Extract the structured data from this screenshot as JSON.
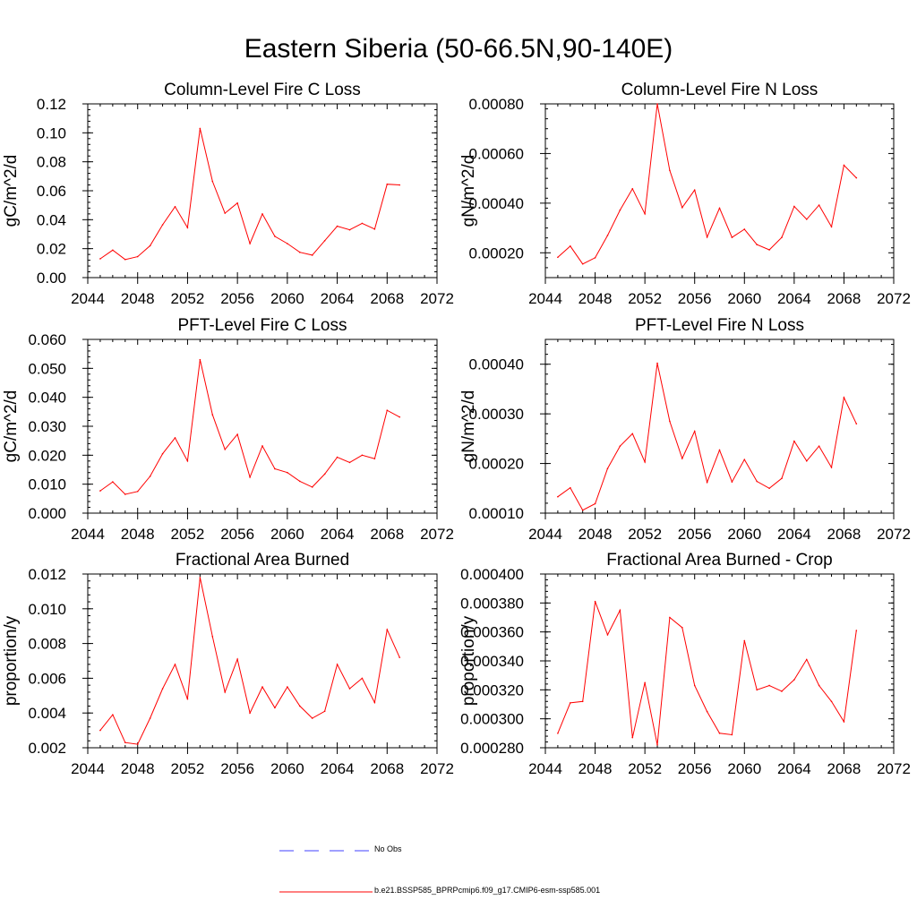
{
  "page_title": "Eastern Siberia (50-66.5N,90-140E)",
  "colors": {
    "model": "#ff0000",
    "obs": "#4040ff",
    "axis": "#000000"
  },
  "chart_data": [
    {
      "type": "line",
      "title": "Column-Level Fire C Loss",
      "ylabel": "gC/m^2/d",
      "xlim": [
        2044,
        2072
      ],
      "ylim": [
        0.0,
        0.12
      ],
      "xticks": [
        "2044",
        "2048",
        "2052",
        "2056",
        "2060",
        "2064",
        "2068",
        "2072"
      ],
      "yticks": [
        "0.00",
        "0.02",
        "0.04",
        "0.06",
        "0.08",
        "0.10",
        "0.12"
      ],
      "series": [
        {
          "name": "b.e21.BSSP585_BPRPcmip6.f09_g17.CMIP6-esm-ssp585.001",
          "x": [
            2045,
            2046,
            2047,
            2048,
            2049,
            2050,
            2051,
            2052,
            2053,
            2054,
            2055,
            2056,
            2057,
            2058,
            2059,
            2060,
            2061,
            2062,
            2063,
            2064,
            2065,
            2066,
            2067,
            2068,
            2069
          ],
          "values": [
            0.013,
            0.019,
            0.0125,
            0.0145,
            0.022,
            0.0365,
            0.049,
            0.0345,
            0.103,
            0.0665,
            0.0445,
            0.0515,
            0.0235,
            0.044,
            0.0285,
            0.0235,
            0.0175,
            0.0155,
            0.0255,
            0.0355,
            0.033,
            0.0375,
            0.0335,
            0.0645,
            0.064
          ]
        }
      ]
    },
    {
      "type": "line",
      "title": "Column-Level Fire N Loss",
      "ylabel": "gN/m^2/d",
      "xlim": [
        2044,
        2072
      ],
      "ylim": [
        0.0001,
        0.0008
      ],
      "xticks": [
        "2044",
        "2048",
        "2052",
        "2056",
        "2060",
        "2064",
        "2068",
        "2072"
      ],
      "yticks": [
        "0.00020",
        "0.00040",
        "0.00060",
        "0.00080"
      ],
      "ytick_values": [
        0.0002,
        0.0004,
        0.0006,
        0.0008
      ],
      "series": [
        {
          "name": "b.e21.BSSP585_BPRPcmip6.f09_g17.CMIP6-esm-ssp585.001",
          "x": [
            2045,
            2046,
            2047,
            2048,
            2049,
            2050,
            2051,
            2052,
            2053,
            2054,
            2055,
            2056,
            2057,
            2058,
            2059,
            2060,
            2061,
            2062,
            2063,
            2064,
            2065,
            2066,
            2067,
            2068,
            2069
          ],
          "values": [
            0.000182,
            0.000227,
            0.000155,
            0.00018,
            0.00027,
            0.000372,
            0.000458,
            0.000357,
            0.0008,
            0.000532,
            0.000382,
            0.000453,
            0.000263,
            0.00038,
            0.000262,
            0.000295,
            0.000233,
            0.000212,
            0.000262,
            0.000387,
            0.000335,
            0.000392,
            0.000305,
            0.000553,
            0.000502
          ]
        }
      ]
    },
    {
      "type": "line",
      "title": "PFT-Level Fire C Loss",
      "ylabel": "gC/m^2/d",
      "xlim": [
        2044,
        2072
      ],
      "ylim": [
        0.0,
        0.06
      ],
      "xticks": [
        "2044",
        "2048",
        "2052",
        "2056",
        "2060",
        "2064",
        "2068",
        "2072"
      ],
      "yticks": [
        "0.000",
        "0.010",
        "0.020",
        "0.030",
        "0.040",
        "0.050",
        "0.060"
      ],
      "series": [
        {
          "name": "b.e21.BSSP585_BPRPcmip6.f09_g17.CMIP6-esm-ssp585.001",
          "x": [
            2045,
            2046,
            2047,
            2048,
            2049,
            2050,
            2051,
            2052,
            2053,
            2054,
            2055,
            2056,
            2057,
            2058,
            2059,
            2060,
            2061,
            2062,
            2063,
            2064,
            2065,
            2066,
            2067,
            2068,
            2069
          ],
          "values": [
            0.0077,
            0.0108,
            0.0065,
            0.0075,
            0.0127,
            0.0205,
            0.026,
            0.018,
            0.053,
            0.034,
            0.022,
            0.0272,
            0.0124,
            0.0232,
            0.0153,
            0.014,
            0.011,
            0.009,
            0.0135,
            0.0193,
            0.0175,
            0.02,
            0.0188,
            0.0355,
            0.0332
          ]
        }
      ]
    },
    {
      "type": "line",
      "title": "PFT-Level Fire N Loss",
      "ylabel": "gN/m^2/d",
      "xlim": [
        2044,
        2072
      ],
      "ylim": [
        0.0001,
        0.00045
      ],
      "xticks": [
        "2044",
        "2048",
        "2052",
        "2056",
        "2060",
        "2064",
        "2068",
        "2072"
      ],
      "yticks": [
        "0.00010",
        "0.00020",
        "0.00030",
        "0.00040"
      ],
      "ytick_values": [
        0.0001,
        0.0002,
        0.0003,
        0.0004
      ],
      "series": [
        {
          "name": "b.e21.BSSP585_BPRPcmip6.f09_g17.CMIP6-esm-ssp585.001",
          "x": [
            2045,
            2046,
            2047,
            2048,
            2049,
            2050,
            2051,
            2052,
            2053,
            2054,
            2055,
            2056,
            2057,
            2058,
            2059,
            2060,
            2061,
            2062,
            2063,
            2064,
            2065,
            2066,
            2067,
            2068,
            2069
          ],
          "values": [
            0.000133,
            0.000151,
            0.000106,
            0.000119,
            0.00019,
            0.000235,
            0.00026,
            0.000203,
            0.000402,
            0.000285,
            0.00021,
            0.000265,
            0.000162,
            0.000227,
            0.000163,
            0.000208,
            0.000164,
            0.00015,
            0.00017,
            0.000245,
            0.000205,
            0.000235,
            0.000192,
            0.000333,
            0.00028
          ]
        }
      ]
    },
    {
      "type": "line",
      "title": "Fractional Area Burned",
      "ylabel": "proportion/y",
      "xlim": [
        2044,
        2072
      ],
      "ylim": [
        0.002,
        0.012
      ],
      "xticks": [
        "2044",
        "2048",
        "2052",
        "2056",
        "2060",
        "2064",
        "2068",
        "2072"
      ],
      "yticks": [
        "0.002",
        "0.004",
        "0.006",
        "0.008",
        "0.010",
        "0.012"
      ],
      "series": [
        {
          "name": "b.e21.BSSP585_BPRPcmip6.f09_g17.CMIP6-esm-ssp585.001",
          "x": [
            2045,
            2046,
            2047,
            2048,
            2049,
            2050,
            2051,
            2052,
            2053,
            2054,
            2055,
            2056,
            2057,
            2058,
            2059,
            2060,
            2061,
            2062,
            2063,
            2064,
            2065,
            2066,
            2067,
            2068,
            2069
          ],
          "values": [
            0.003,
            0.0039,
            0.0023,
            0.0022,
            0.0037,
            0.0054,
            0.0068,
            0.0048,
            0.0118,
            0.0084,
            0.0052,
            0.0071,
            0.004,
            0.0055,
            0.0043,
            0.0055,
            0.0044,
            0.0037,
            0.0041,
            0.0068,
            0.0054,
            0.006,
            0.0046,
            0.0088,
            0.0072
          ]
        }
      ]
    },
    {
      "type": "line",
      "title": "Fractional Area Burned - Crop",
      "ylabel": "proportion/y",
      "xlim": [
        2044,
        2072
      ],
      "ylim": [
        0.00028,
        0.0004
      ],
      "xticks": [
        "2044",
        "2048",
        "2052",
        "2056",
        "2060",
        "2064",
        "2068",
        "2072"
      ],
      "yticks": [
        "0.000280",
        "0.000300",
        "0.000320",
        "0.000340",
        "0.000360",
        "0.000380",
        "0.000400"
      ],
      "series": [
        {
          "name": "b.e21.BSSP585_BPRPcmip6.f09_g17.CMIP6-esm-ssp585.001",
          "x": [
            2045,
            2046,
            2047,
            2048,
            2049,
            2050,
            2051,
            2052,
            2053,
            2054,
            2055,
            2056,
            2057,
            2058,
            2059,
            2060,
            2061,
            2062,
            2063,
            2064,
            2065,
            2066,
            2067,
            2068,
            2069
          ],
          "values": [
            0.00029,
            0.000311,
            0.000312,
            0.000381,
            0.000358,
            0.000375,
            0.000287,
            0.000325,
            0.000282,
            0.00037,
            0.000363,
            0.000323,
            0.000305,
            0.00029,
            0.000289,
            0.000354,
            0.00032,
            0.000323,
            0.000319,
            0.000327,
            0.000341,
            0.000323,
            0.000312,
            0.000298,
            0.000361
          ]
        }
      ]
    }
  ],
  "legend": {
    "obs_label": "No Obs",
    "model_label": "b.e21.BSSP585_BPRPcmip6.f09_g17.CMIP6-esm-ssp585.001"
  }
}
